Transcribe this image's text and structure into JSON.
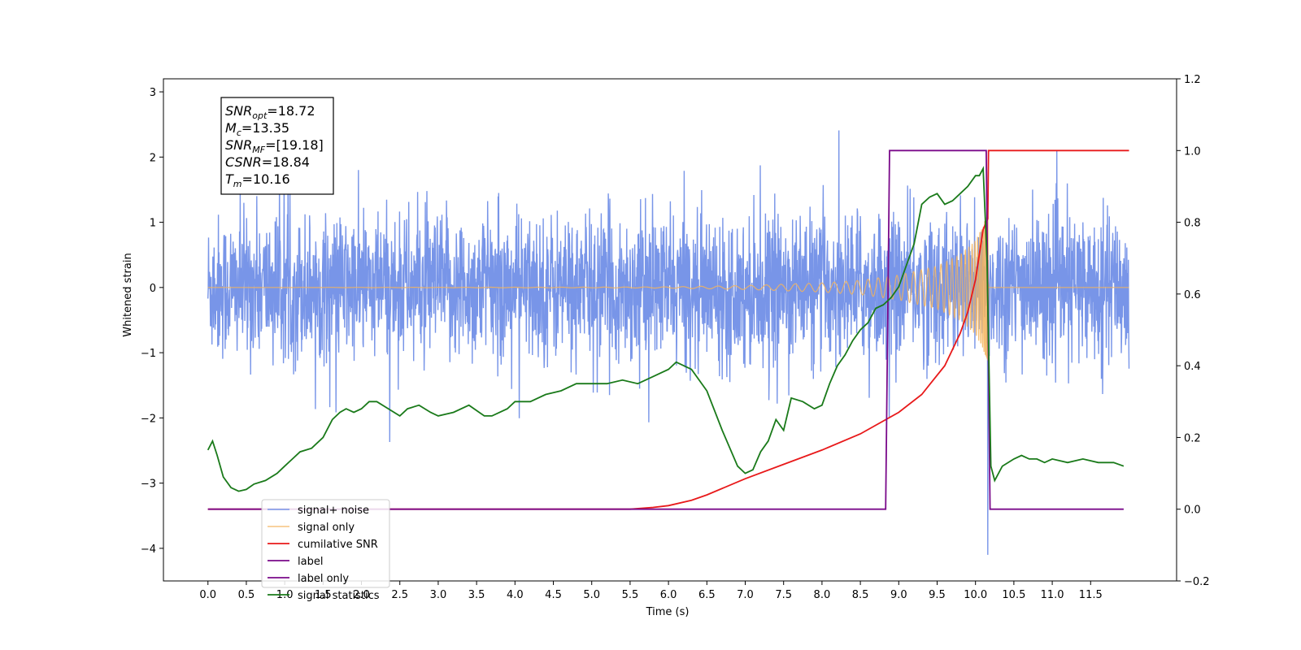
{
  "chart_data": {
    "type": "line",
    "xlabel": "Time (s)",
    "ylabel_left": "Whitened strain",
    "xlim": [
      -0.58,
      12.62
    ],
    "ylim_left": [
      -4.5,
      3.2
    ],
    "ylim_right": [
      -0.2,
      1.2
    ],
    "x_ticks": [
      0.0,
      0.5,
      1.0,
      1.5,
      2.0,
      2.5,
      3.0,
      3.5,
      4.0,
      4.5,
      5.0,
      5.5,
      6.0,
      6.5,
      7.0,
      7.5,
      8.0,
      8.5,
      9.0,
      9.5,
      10.0,
      10.5,
      11.0,
      11.5
    ],
    "x_tick_labels": [
      "0.0",
      "0.5",
      "1.0",
      "1.5",
      "2.0",
      "2.5",
      "3.0",
      "3.5",
      "4.0",
      "4.5",
      "5.0",
      "5.5",
      "6.0",
      "6.5",
      "7.0",
      "7.5",
      "8.0",
      "8.5",
      "9.0",
      "9.5",
      "10.0",
      "10.5",
      "11.0",
      "11.5"
    ],
    "y_ticks_left": [
      3,
      2,
      1,
      0,
      -1,
      -2,
      -3,
      -4
    ],
    "y_tick_labels_left": [
      "3",
      "2",
      "1",
      "0",
      "−1",
      "−2",
      "−3",
      "−4"
    ],
    "y_ticks_right": [
      1.2,
      1.0,
      0.8,
      0.6,
      0.4,
      0.2,
      0.0,
      -0.2
    ],
    "y_tick_labels_right": [
      "1.2",
      "1.0",
      "0.8",
      "0.6",
      "0.4",
      "0.2",
      "0.0",
      "−0.2"
    ],
    "grid": false,
    "legend_position": "bottom-left",
    "annotation": [
      {
        "var": "SNR",
        "sub": "opt",
        "value": "=18.72"
      },
      {
        "var": "M",
        "sub": "c",
        "value": "=13.35"
      },
      {
        "var": "SNR",
        "sub": "MF",
        "value": "=[19.18]"
      },
      {
        "var": "CSNR",
        "sub": "",
        "value": "=18.84"
      },
      {
        "var": "T",
        "sub": "m",
        "value": "=10.16"
      }
    ],
    "series": [
      {
        "name": "signal+ noise",
        "axis": "left",
        "color": "#7895e8",
        "description": "dense noise, amplitude about ±1.3 with peaks to about ±2.8, spike to -4.1 near 10.16 s",
        "x_range": [
          0.0,
          12.0
        ],
        "noise_sigma": 0.55,
        "peak_min": -4.1,
        "peak_max": 2.85
      },
      {
        "name": "signal only",
        "axis": "left",
        "color": "#f5b45c",
        "envelope_x": [
          0.0,
          5.0,
          6.0,
          7.0,
          8.0,
          8.5,
          9.0,
          9.5,
          9.8,
          10.0,
          10.1,
          10.16,
          10.2,
          12.0
        ],
        "envelope_y": [
          0.0,
          0.005,
          0.01,
          0.03,
          0.07,
          0.11,
          0.19,
          0.33,
          0.5,
          0.72,
          0.95,
          1.2,
          0.0,
          0.0
        ]
      },
      {
        "name": "cumilative SNR",
        "axis": "right",
        "color": "#e8191a",
        "x": [
          0.0,
          5.5,
          5.8,
          6.0,
          6.3,
          6.5,
          7.0,
          7.5,
          8.0,
          8.5,
          9.0,
          9.3,
          9.6,
          9.8,
          9.9,
          10.0,
          10.1,
          10.16,
          10.17,
          12.0
        ],
        "y": [
          0.0,
          0.0,
          0.005,
          0.01,
          0.025,
          0.04,
          0.085,
          0.125,
          0.165,
          0.21,
          0.27,
          0.32,
          0.4,
          0.49,
          0.55,
          0.64,
          0.78,
          0.81,
          1.0,
          1.0
        ]
      },
      {
        "name": "label",
        "axis": "right",
        "color": "#7a0a8a",
        "x": [
          0.0,
          8.83,
          8.88,
          10.14,
          10.19,
          11.93
        ],
        "y": [
          0.0,
          0.0,
          1.0,
          1.0,
          0.0,
          0.0
        ]
      },
      {
        "name": "label only",
        "axis": "right",
        "color": "#7a0a8a",
        "hidden": true
      },
      {
        "name": "signal statistics",
        "axis": "right",
        "color": "#1a7a1a",
        "x": [
          0.0,
          0.06,
          0.12,
          0.2,
          0.3,
          0.4,
          0.5,
          0.6,
          0.75,
          0.9,
          1.0,
          1.1,
          1.2,
          1.35,
          1.5,
          1.62,
          1.72,
          1.8,
          1.9,
          2.0,
          2.1,
          2.2,
          2.35,
          2.5,
          2.6,
          2.75,
          2.9,
          3.0,
          3.2,
          3.4,
          3.6,
          3.7,
          3.9,
          4.0,
          4.2,
          4.4,
          4.6,
          4.8,
          5.0,
          5.2,
          5.4,
          5.6,
          5.8,
          6.0,
          6.1,
          6.3,
          6.5,
          6.7,
          6.9,
          7.0,
          7.1,
          7.2,
          7.3,
          7.4,
          7.5,
          7.6,
          7.75,
          7.9,
          8.0,
          8.1,
          8.2,
          8.3,
          8.4,
          8.5,
          8.6,
          8.7,
          8.8,
          8.9,
          9.0,
          9.1,
          9.2,
          9.3,
          9.4,
          9.5,
          9.6,
          9.7,
          9.8,
          9.9,
          10.0,
          10.05,
          10.1,
          10.15,
          10.2,
          10.25,
          10.35,
          10.5,
          10.6,
          10.7,
          10.8,
          10.9,
          11.0,
          11.2,
          11.4,
          11.6,
          11.8,
          11.93
        ],
        "y": [
          0.165,
          0.19,
          0.15,
          0.09,
          0.06,
          0.05,
          0.055,
          0.07,
          0.08,
          0.1,
          0.12,
          0.14,
          0.16,
          0.17,
          0.2,
          0.25,
          0.27,
          0.28,
          0.27,
          0.28,
          0.3,
          0.3,
          0.28,
          0.26,
          0.28,
          0.29,
          0.27,
          0.26,
          0.27,
          0.29,
          0.26,
          0.26,
          0.28,
          0.3,
          0.3,
          0.32,
          0.33,
          0.35,
          0.35,
          0.35,
          0.36,
          0.35,
          0.37,
          0.39,
          0.41,
          0.39,
          0.33,
          0.22,
          0.12,
          0.1,
          0.11,
          0.16,
          0.19,
          0.25,
          0.22,
          0.31,
          0.3,
          0.28,
          0.29,
          0.35,
          0.4,
          0.43,
          0.47,
          0.5,
          0.52,
          0.56,
          0.57,
          0.59,
          0.62,
          0.68,
          0.74,
          0.85,
          0.87,
          0.88,
          0.85,
          0.86,
          0.88,
          0.9,
          0.93,
          0.93,
          0.95,
          0.7,
          0.12,
          0.08,
          0.12,
          0.14,
          0.15,
          0.14,
          0.14,
          0.13,
          0.14,
          0.13,
          0.14,
          0.13,
          0.13,
          0.12
        ]
      }
    ]
  }
}
